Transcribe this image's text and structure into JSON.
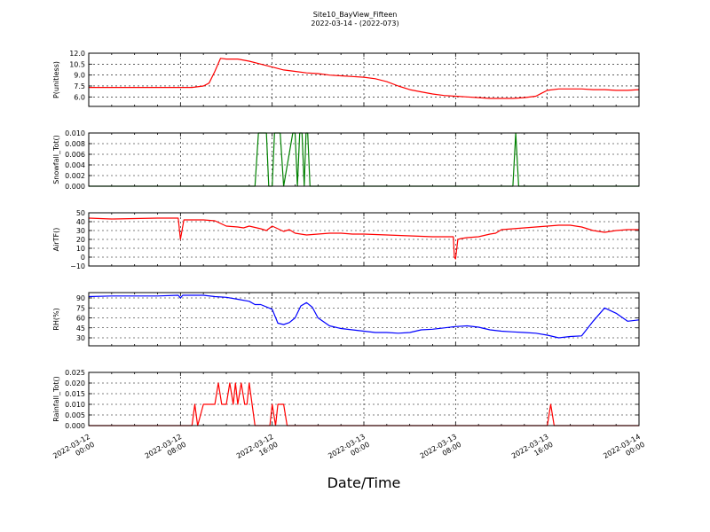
{
  "figure": {
    "title_line1": "Site10_BayView_Fifteen",
    "title_line2": "2022-03-14 - (2022-073)",
    "xlabel": "Date/Time",
    "x_tick_labels": [
      [
        "2022-03-12",
        "00:00"
      ],
      [
        "2022-03-12",
        "08:00"
      ],
      [
        "2022-03-12",
        "16:00"
      ],
      [
        "2022-03-13",
        "00:00"
      ],
      [
        "2022-03-13",
        "08:00"
      ],
      [
        "2022-03-13",
        "16:00"
      ],
      [
        "2022-03-14",
        "00:00"
      ]
    ],
    "x_range_hours": [
      0,
      48
    ],
    "grid": true
  },
  "chart_data": [
    {
      "type": "line",
      "ylabel": "P(unitless)",
      "ylim": [
        4.7,
        12.0
      ],
      "yticks": [
        6.0,
        7.5,
        9.0,
        10.5,
        12.0
      ],
      "ytick_labels": [
        "6.0",
        "7.5",
        "9.0",
        "10.5",
        "12.0"
      ],
      "color": "#ff0000",
      "x": [
        0,
        3,
        6,
        8,
        9,
        10,
        10.5,
        11,
        11.5,
        12,
        13,
        14,
        15,
        16,
        17,
        18,
        19,
        20,
        21,
        22,
        23,
        24,
        25,
        26,
        27,
        28,
        29,
        30,
        31,
        32,
        33,
        34,
        35,
        36,
        37,
        38,
        39,
        39.5,
        40,
        41,
        42,
        43,
        44,
        45,
        46,
        47,
        48
      ],
      "y": [
        7.3,
        7.3,
        7.3,
        7.3,
        7.3,
        7.5,
        7.9,
        9.5,
        11.3,
        11.2,
        11.2,
        10.9,
        10.5,
        10.1,
        9.7,
        9.5,
        9.3,
        9.2,
        9.0,
        8.9,
        8.8,
        8.7,
        8.5,
        8.1,
        7.5,
        7.0,
        6.7,
        6.4,
        6.2,
        6.1,
        6.0,
        5.9,
        5.8,
        5.8,
        5.8,
        5.9,
        6.1,
        6.5,
        6.9,
        7.1,
        7.1,
        7.1,
        7.0,
        7.0,
        6.9,
        6.9,
        7.0
      ]
    },
    {
      "type": "line",
      "ylabel": "Snowfall_Tot()",
      "ylim": [
        0,
        0.01
      ],
      "yticks": [
        0,
        0.002,
        0.004,
        0.006,
        0.008,
        0.01
      ],
      "ytick_labels": [
        "0.000",
        "0.002",
        "0.004",
        "0.006",
        "0.008",
        "0.010"
      ],
      "color": "#008000",
      "x": [
        0,
        14.5,
        14.8,
        15.5,
        15.7,
        16.0,
        16.2,
        16.7,
        17.0,
        17.8,
        18.0,
        18.2,
        18.4,
        18.6,
        18.8,
        18.95,
        19.1,
        19.3,
        19.5,
        37.0,
        37.25,
        37.5,
        48
      ],
      "y": [
        0,
        0,
        0.01,
        0.01,
        0,
        0,
        0.01,
        0.01,
        0,
        0.01,
        0.01,
        0,
        0.01,
        0.01,
        0,
        0.01,
        0.01,
        0,
        0,
        0,
        0.01,
        0,
        0
      ]
    },
    {
      "type": "line",
      "ylabel": "AirTF()",
      "ylim": [
        -10,
        50
      ],
      "yticks": [
        -10,
        0,
        10,
        20,
        30,
        40,
        50
      ],
      "ytick_labels": [
        "−10",
        "0",
        "10",
        "20",
        "30",
        "40",
        "50"
      ],
      "color": "#ff0000",
      "x": [
        0,
        2,
        4,
        6,
        7.8,
        8.0,
        8.3,
        9,
        10,
        11,
        12,
        13,
        13.5,
        14,
        15,
        15.5,
        16,
        17,
        17.5,
        18,
        19,
        20,
        21,
        22,
        23,
        24,
        26,
        28,
        30,
        31,
        31.8,
        31.9,
        32,
        32.2,
        32.5,
        33,
        34,
        35,
        35.5,
        36,
        37,
        38,
        39,
        40,
        41,
        42,
        43,
        44,
        45,
        46,
        47,
        48
      ],
      "y": [
        44,
        43,
        43.5,
        44,
        44,
        20,
        42,
        42,
        42,
        41,
        35,
        34,
        33,
        35,
        32,
        30,
        35,
        29,
        31,
        27,
        25,
        26,
        27,
        27,
        26,
        26,
        25,
        24,
        23,
        23,
        23,
        0,
        -2,
        20,
        21,
        22,
        23,
        26,
        27,
        31,
        32,
        33,
        34,
        35,
        36,
        36,
        34,
        30,
        28,
        30,
        31,
        31
      ]
    },
    {
      "type": "line",
      "ylabel": "RH(%)",
      "ylim": [
        18,
        98
      ],
      "yticks": [
        30,
        45,
        60,
        75,
        90
      ],
      "ytick_labels": [
        "30",
        "45",
        "60",
        "75",
        "90"
      ],
      "color": "#0000ff",
      "x": [
        0,
        2,
        4,
        6,
        7.8,
        8.0,
        8.2,
        10,
        11,
        12,
        13,
        14,
        14.5,
        15,
        16,
        16.5,
        17,
        17.5,
        18,
        18.5,
        19,
        19.5,
        20,
        21,
        22,
        23,
        24,
        25,
        26,
        27,
        28,
        29,
        30,
        31,
        32,
        33,
        34,
        35,
        36,
        37,
        38,
        39,
        40,
        41,
        42,
        43,
        44,
        45,
        46,
        47,
        48
      ],
      "y": [
        92,
        93,
        93,
        93,
        94,
        90,
        94,
        94,
        92,
        91,
        88,
        85,
        80,
        80,
        73,
        52,
        50,
        53,
        60,
        78,
        83,
        76,
        60,
        48,
        44,
        42,
        40,
        38,
        38,
        37,
        38,
        42,
        43,
        45,
        47,
        48,
        46,
        42,
        40,
        39,
        38,
        37,
        34,
        30,
        32,
        33,
        55,
        75,
        67,
        55,
        57
      ]
    },
    {
      "type": "line",
      "ylabel": "Rainfall_Tot()",
      "ylim": [
        0,
        0.025
      ],
      "yticks": [
        0,
        0.005,
        0.01,
        0.015,
        0.02,
        0.025
      ],
      "ytick_labels": [
        "0.000",
        "0.005",
        "0.010",
        "0.015",
        "0.020",
        "0.025"
      ],
      "color": "#ff0000",
      "x": [
        0,
        9.0,
        9.25,
        9.5,
        10.0,
        11.0,
        11.3,
        11.6,
        12.0,
        12.3,
        12.6,
        12.8,
        13.0,
        13.3,
        13.6,
        13.8,
        14.0,
        14.5,
        14.7,
        15.0,
        15.8,
        16.0,
        16.3,
        16.5,
        17.0,
        17.3,
        40.0,
        40.3,
        40.6,
        48
      ],
      "y": [
        0,
        0,
        0.01,
        0,
        0.01,
        0.01,
        0.02,
        0.01,
        0.01,
        0.02,
        0.01,
        0.02,
        0.01,
        0.02,
        0.01,
        0.01,
        0.02,
        0,
        0,
        0,
        0,
        0.01,
        0,
        0.01,
        0.01,
        0,
        0,
        0.01,
        0,
        0
      ]
    }
  ]
}
